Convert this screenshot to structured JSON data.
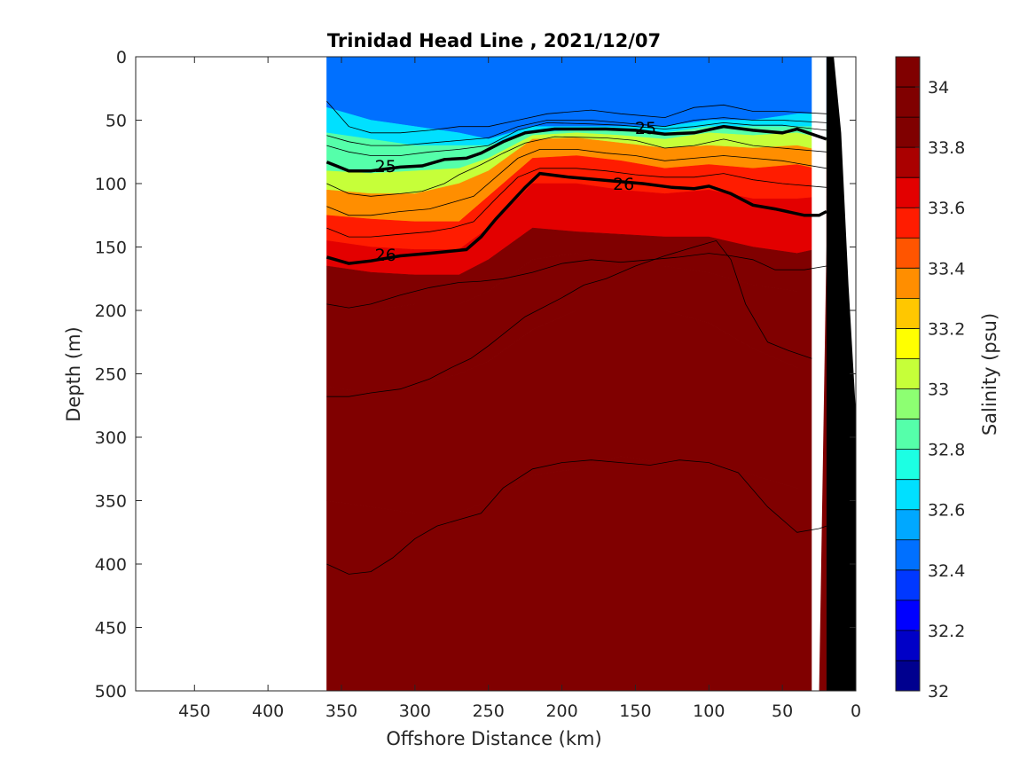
{
  "chart_data": {
    "type": "heatmap",
    "title": "Trinidad Head Line , 2021/12/07",
    "xlabel": "Offshore Distance (km)",
    "ylabel": "Depth (m)",
    "colorbar_label": "Salinity (psu)",
    "xlim": [
      490,
      0
    ],
    "ylim": [
      500,
      0
    ],
    "x_reversed": true,
    "y_reversed": true,
    "xticks": [
      "450",
      "400",
      "350",
      "300",
      "250",
      "200",
      "150",
      "100",
      "50",
      "0"
    ],
    "yticks": [
      "0",
      "50",
      "100",
      "150",
      "200",
      "250",
      "300",
      "350",
      "400",
      "450",
      "500"
    ],
    "colorbar": {
      "range": [
        32,
        34.1
      ],
      "levels": [
        32,
        32.1,
        32.2,
        32.3,
        32.4,
        32.5,
        32.6,
        32.7,
        32.8,
        32.9,
        33,
        33.1,
        33.2,
        33.3,
        33.4,
        33.5,
        33.6,
        33.7,
        33.8,
        33.9,
        34,
        34.1
      ],
      "colors": [
        "#00008f",
        "#0000c7",
        "#0000ff",
        "#0038ff",
        "#0070ff",
        "#00a8ff",
        "#00e0ff",
        "#1cffe3",
        "#55ffaa",
        "#8dff72",
        "#c6ff39",
        "#ffff00",
        "#ffc700",
        "#ff8e00",
        "#ff5500",
        "#ff1c00",
        "#e30000",
        "#aa0000",
        "#800000",
        "#800000",
        "#800000"
      ],
      "tick_labels": [
        "32",
        "32.2",
        "32.4",
        "32.6",
        "32.8",
        "33",
        "33.2",
        "33.4",
        "33.6",
        "33.8",
        "34"
      ]
    },
    "data_extent_km": [
      360,
      20
    ],
    "salinity_section": {
      "x_km": [
        360,
        330,
        300,
        270,
        250,
        220,
        190,
        160,
        130,
        100,
        70,
        40,
        20
      ],
      "layers": [
        {
          "salinity": 32.45,
          "depth_bottom_m": [
            40,
            50,
            55,
            60,
            65,
            55,
            55,
            55,
            55,
            50,
            50,
            45,
            45
          ]
        },
        {
          "salinity": 32.65,
          "depth_bottom_m": [
            60,
            65,
            70,
            70,
            70,
            60,
            58,
            58,
            60,
            55,
            55,
            55,
            55
          ]
        },
        {
          "salinity": 32.85,
          "depth_bottom_m": [
            90,
            92,
            90,
            88,
            80,
            62,
            60,
            62,
            65,
            60,
            62,
            60,
            65
          ]
        },
        {
          "salinity": 33.05,
          "depth_bottom_m": [
            105,
            108,
            108,
            100,
            90,
            65,
            64,
            68,
            72,
            70,
            72,
            70,
            75
          ]
        },
        {
          "salinity": 33.3,
          "depth_bottom_m": [
            125,
            128,
            130,
            130,
            110,
            80,
            78,
            82,
            88,
            85,
            88,
            85,
            90
          ]
        },
        {
          "salinity": 33.5,
          "depth_bottom_m": [
            145,
            150,
            152,
            152,
            135,
            100,
            100,
            105,
            108,
            105,
            112,
            112,
            110
          ]
        },
        {
          "salinity": 33.65,
          "depth_bottom_m": [
            165,
            170,
            172,
            172,
            160,
            135,
            138,
            140,
            142,
            142,
            150,
            155,
            150
          ]
        },
        {
          "salinity": 33.8,
          "depth_bottom_m": [
            200,
            200,
            195,
            195,
            185,
            160,
            155,
            165,
            165,
            170,
            180,
            185,
            185
          ]
        },
        {
          "salinity": 33.9,
          "depth_bottom_m": [
            260,
            265,
            260,
            250,
            240,
            215,
            200,
            200,
            200,
            210,
            230,
            245,
            245
          ]
        },
        {
          "salinity": 34.0,
          "depth_bottom_m": [
            350,
            355,
            360,
            360,
            350,
            330,
            325,
            315,
            320,
            320,
            330,
            340,
            340
          ]
        },
        {
          "salinity": 34.05,
          "depth_bottom_m": [
            500,
            500,
            500,
            500,
            500,
            500,
            500,
            500,
            500,
            500,
            500,
            500,
            500
          ]
        }
      ]
    },
    "labeled_isopycnals": [
      {
        "label": "25",
        "points": [
          [
            360,
            83
          ],
          [
            345,
            90
          ],
          [
            330,
            90
          ],
          [
            310,
            87
          ],
          [
            295,
            86
          ],
          [
            280,
            81
          ],
          [
            265,
            80
          ],
          [
            255,
            76
          ],
          [
            240,
            67
          ],
          [
            225,
            60
          ],
          [
            205,
            57
          ],
          [
            170,
            57
          ],
          [
            150,
            58
          ],
          [
            130,
            61
          ],
          [
            110,
            60
          ],
          [
            90,
            55
          ],
          [
            70,
            58
          ],
          [
            50,
            60
          ],
          [
            40,
            57
          ],
          [
            20,
            65
          ]
        ],
        "label_at": [
          320,
          86
        ]
      },
      {
        "label": "26",
        "points": [
          [
            360,
            158
          ],
          [
            345,
            163
          ],
          [
            330,
            161
          ],
          [
            310,
            157
          ],
          [
            290,
            155
          ],
          [
            265,
            152
          ],
          [
            255,
            142
          ],
          [
            245,
            128
          ],
          [
            225,
            103
          ],
          [
            215,
            92
          ],
          [
            195,
            95
          ],
          [
            165,
            98
          ],
          [
            145,
            100
          ],
          [
            125,
            103
          ],
          [
            110,
            104
          ],
          [
            100,
            102
          ],
          [
            85,
            108
          ],
          [
            70,
            117
          ],
          [
            55,
            120
          ],
          [
            35,
            125
          ],
          [
            25,
            125
          ],
          [
            20,
            122
          ]
        ],
        "label_at": [
          320,
          156
        ]
      }
    ],
    "thin_isopycnals": [
      {
        "points": [
          [
            360,
            35
          ],
          [
            345,
            55
          ],
          [
            330,
            60
          ],
          [
            310,
            60
          ],
          [
            290,
            58
          ],
          [
            270,
            55
          ],
          [
            250,
            55
          ],
          [
            230,
            50
          ],
          [
            210,
            45
          ],
          [
            180,
            42
          ],
          [
            160,
            45
          ],
          [
            130,
            48
          ],
          [
            110,
            40
          ],
          [
            90,
            38
          ],
          [
            70,
            43
          ],
          [
            50,
            43
          ],
          [
            20,
            45
          ]
        ]
      },
      {
        "points": [
          [
            360,
            62
          ],
          [
            345,
            67
          ],
          [
            330,
            70
          ],
          [
            310,
            70
          ],
          [
            290,
            68
          ],
          [
            270,
            66
          ],
          [
            250,
            64
          ],
          [
            230,
            55
          ],
          [
            210,
            50
          ],
          [
            180,
            50
          ],
          [
            160,
            52
          ],
          [
            130,
            55
          ],
          [
            110,
            50
          ],
          [
            90,
            48
          ],
          [
            70,
            50
          ],
          [
            50,
            50
          ],
          [
            20,
            52
          ]
        ]
      },
      {
        "points": [
          [
            360,
            70
          ],
          [
            345,
            75
          ],
          [
            330,
            78
          ],
          [
            310,
            78
          ],
          [
            290,
            75
          ],
          [
            270,
            73
          ],
          [
            250,
            70
          ],
          [
            230,
            58
          ],
          [
            210,
            52
          ],
          [
            180,
            53
          ],
          [
            160,
            54
          ],
          [
            130,
            57
          ],
          [
            110,
            55
          ],
          [
            90,
            52
          ],
          [
            70,
            54
          ],
          [
            50,
            54
          ],
          [
            20,
            58
          ]
        ]
      },
      {
        "points": [
          [
            360,
            100
          ],
          [
            345,
            108
          ],
          [
            330,
            110
          ],
          [
            310,
            108
          ],
          [
            295,
            106
          ],
          [
            280,
            100
          ],
          [
            270,
            93
          ],
          [
            255,
            85
          ],
          [
            240,
            76
          ],
          [
            225,
            68
          ],
          [
            205,
            63
          ],
          [
            170,
            64
          ],
          [
            150,
            66
          ],
          [
            130,
            72
          ],
          [
            110,
            70
          ],
          [
            90,
            65
          ],
          [
            70,
            70
          ],
          [
            50,
            72
          ],
          [
            20,
            75
          ]
        ]
      },
      {
        "points": [
          [
            360,
            118
          ],
          [
            345,
            125
          ],
          [
            330,
            125
          ],
          [
            310,
            122
          ],
          [
            290,
            120
          ],
          [
            275,
            115
          ],
          [
            260,
            110
          ],
          [
            245,
            95
          ],
          [
            230,
            80
          ],
          [
            215,
            73
          ],
          [
            190,
            73
          ],
          [
            170,
            76
          ],
          [
            150,
            78
          ],
          [
            130,
            82
          ],
          [
            110,
            80
          ],
          [
            90,
            78
          ],
          [
            70,
            80
          ],
          [
            50,
            82
          ],
          [
            20,
            88
          ]
        ]
      },
      {
        "points": [
          [
            360,
            135
          ],
          [
            345,
            142
          ],
          [
            330,
            142
          ],
          [
            310,
            140
          ],
          [
            290,
            138
          ],
          [
            275,
            135
          ],
          [
            260,
            130
          ],
          [
            245,
            112
          ],
          [
            230,
            95
          ],
          [
            215,
            88
          ],
          [
            190,
            88
          ],
          [
            170,
            90
          ],
          [
            150,
            93
          ],
          [
            130,
            95
          ],
          [
            110,
            95
          ],
          [
            90,
            92
          ],
          [
            70,
            97
          ],
          [
            50,
            100
          ],
          [
            20,
            103
          ]
        ]
      },
      {
        "points": [
          [
            360,
            195
          ],
          [
            345,
            198
          ],
          [
            330,
            195
          ],
          [
            310,
            188
          ],
          [
            290,
            182
          ],
          [
            270,
            178
          ],
          [
            255,
            177
          ],
          [
            240,
            175
          ],
          [
            220,
            170
          ],
          [
            200,
            163
          ],
          [
            180,
            160
          ],
          [
            160,
            162
          ],
          [
            140,
            160
          ],
          [
            120,
            158
          ],
          [
            100,
            155
          ],
          [
            85,
            157
          ],
          [
            70,
            160
          ],
          [
            55,
            168
          ],
          [
            35,
            168
          ],
          [
            20,
            165
          ]
        ]
      },
      {
        "points": [
          [
            360,
            268
          ],
          [
            345,
            268
          ],
          [
            330,
            265
          ],
          [
            310,
            262
          ],
          [
            290,
            254
          ],
          [
            275,
            245
          ],
          [
            262,
            238
          ],
          [
            250,
            228
          ],
          [
            225,
            205
          ],
          [
            200,
            190
          ],
          [
            185,
            180
          ],
          [
            170,
            175
          ],
          [
            150,
            165
          ],
          [
            130,
            157
          ],
          [
            110,
            150
          ],
          [
            95,
            145
          ],
          [
            85,
            160
          ],
          [
            75,
            195
          ],
          [
            60,
            225
          ],
          [
            45,
            232
          ],
          [
            30,
            238
          ]
        ]
      },
      {
        "points": [
          [
            360,
            400
          ],
          [
            345,
            408
          ],
          [
            330,
            406
          ],
          [
            315,
            395
          ],
          [
            300,
            380
          ],
          [
            285,
            370
          ],
          [
            270,
            365
          ],
          [
            255,
            360
          ],
          [
            240,
            340
          ],
          [
            220,
            325
          ],
          [
            200,
            320
          ],
          [
            180,
            318
          ],
          [
            160,
            320
          ],
          [
            140,
            322
          ],
          [
            120,
            318
          ],
          [
            100,
            320
          ],
          [
            80,
            328
          ],
          [
            60,
            355
          ],
          [
            40,
            375
          ],
          [
            25,
            372
          ],
          [
            20,
            370
          ]
        ]
      }
    ],
    "bathymetry_km_depth": [
      [
        20,
        500
      ],
      [
        20,
        0
      ],
      [
        15,
        0
      ],
      [
        10,
        60
      ],
      [
        5,
        180
      ],
      [
        0,
        280
      ],
      [
        0,
        500
      ]
    ],
    "mask_polygon_km_depth": [
      [
        25,
        500
      ],
      [
        20,
        150
      ],
      [
        20,
        0
      ],
      [
        30,
        0
      ],
      [
        30,
        500
      ]
    ]
  }
}
